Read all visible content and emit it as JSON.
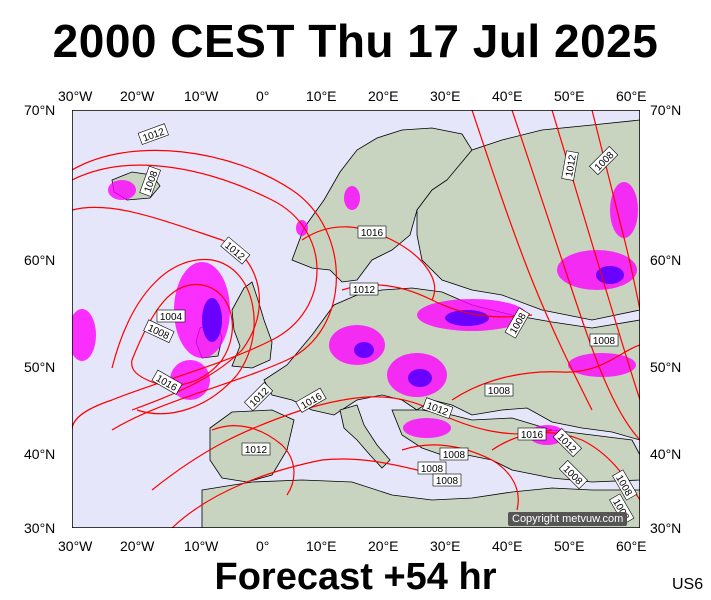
{
  "title": "2000 CEST Thu 17 Jul 2025",
  "footer": "Forecast +54 hr",
  "code": "US6",
  "copyright": "Copyright metvuw.com",
  "lon_labels": [
    "30°W",
    "20°W",
    "10°W",
    "0°",
    "10°E",
    "20°E",
    "30°E",
    "40°E",
    "50°E",
    "60°E"
  ],
  "lat_labels": [
    "70°N",
    "60°N",
    "50°N",
    "40°N",
    "30°N"
  ],
  "isobar_labels": [
    "1012",
    "1008",
    "1012",
    "1016",
    "1012",
    "1004",
    "1008",
    "1016",
    "1012",
    "1016",
    "1012",
    "1008",
    "1008",
    "1012",
    "1008",
    "1008",
    "1008",
    "1008",
    "1016",
    "1012",
    "1008",
    "1008",
    "1012",
    "1008",
    "1008"
  ],
  "colors": {
    "ocean": "#e6e6fa",
    "land": "#c8d4c0",
    "isobar": "#ff0000",
    "rain": "#ff00ff",
    "rain_heavy": "#6a00ff",
    "coast": "#000000"
  }
}
